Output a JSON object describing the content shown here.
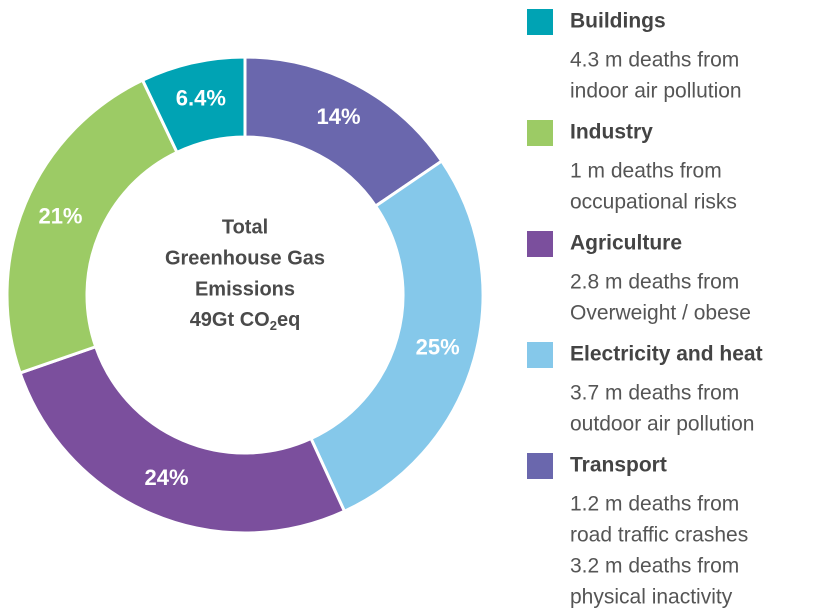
{
  "chart_data": {
    "type": "donut",
    "center_lines": [
      "Total",
      "Greenhouse Gas",
      "Emissions"
    ],
    "center_total": [
      "49Gt CO",
      "2",
      "eq"
    ],
    "series": [
      {
        "name": "Buildings",
        "color": "#00a3b4",
        "value": 6.4,
        "value_label": "6.4%",
        "description": [
          "4.3 m deaths from",
          "indoor air pollution"
        ]
      },
      {
        "name": "Industry",
        "color": "#9ccb65",
        "value": 21,
        "value_label": "21%",
        "description": [
          "1 m deaths from",
          "occupational risks"
        ]
      },
      {
        "name": "Agriculture",
        "color": "#7b4f9d",
        "value": 24,
        "value_label": "24%",
        "description": [
          "2.8 m deaths from",
          "Overweight / obese"
        ]
      },
      {
        "name": "Electricity and heat",
        "color": "#85c8ea",
        "value": 25,
        "value_label": "25%",
        "description": [
          "3.7 m deaths from",
          "outdoor air pollution"
        ]
      },
      {
        "name": "Transport",
        "color": "#6a67ad",
        "value": 14,
        "value_label": "14%",
        "description": [
          "1.2 m deaths from",
          "road traffic crashes",
          "3.2 m deaths from",
          "physical inactivity"
        ]
      }
    ]
  }
}
